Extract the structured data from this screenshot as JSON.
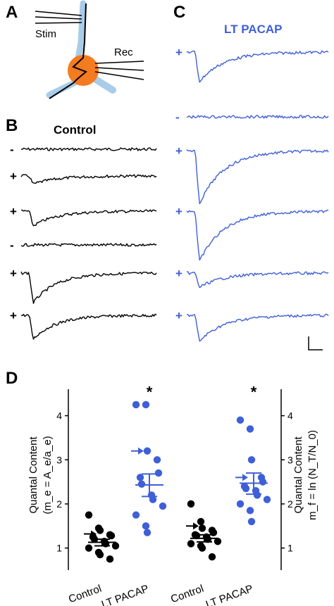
{
  "panels": {
    "a": {
      "letter": "A",
      "stim_label": "Stim",
      "rec_label": "Rec"
    },
    "b": {
      "letter": "B",
      "title": "Control",
      "signs": [
        "-",
        "+",
        "+",
        "-",
        "+",
        "+"
      ]
    },
    "c": {
      "letter": "C",
      "title": "LT PACAP",
      "signs": [
        "+",
        "-",
        "+",
        "+",
        "+",
        "+"
      ]
    },
    "d": {
      "letter": "D"
    }
  },
  "colors": {
    "control": "#000000",
    "pacap": "#3f5fd8",
    "soma": "#f47b20",
    "dendrite": "#a9cde8"
  },
  "chart_data": [
    {
      "type": "scatter",
      "ylabel_line1": "Quantal Content",
      "ylabel_line2": "(m_e = A_e/a_e)",
      "ylim": [
        0.5,
        4.6
      ],
      "yticks": [
        1,
        2,
        3,
        4
      ],
      "categories": [
        "Control",
        "LT PACAP"
      ],
      "series": [
        {
          "category": "Control",
          "values": [
            1.75,
            1.45,
            1.4,
            1.3,
            1.28,
            1.25,
            1.2,
            1.15,
            1.1,
            1.05,
            1.0,
            0.9,
            0.85,
            0.75
          ],
          "mean": 1.13,
          "sem_upper": 1.2,
          "sem_lower": 1.05,
          "arrow_value": 1.32
        },
        {
          "category": "LT PACAP",
          "values": [
            4.25,
            4.25,
            3.2,
            3.0,
            2.7,
            2.6,
            2.45,
            2.2,
            2.1,
            1.95,
            1.75,
            1.5,
            1.35
          ],
          "mean": 2.43,
          "sem_upper": 2.68,
          "sem_lower": 2.17,
          "arrow_value": 3.2
        }
      ],
      "annotation": "*"
    },
    {
      "type": "scatter",
      "ylabel_line1": "Quantal Content",
      "ylabel_line2": "m_f = ln (N_T/N_0)",
      "ylim": [
        0.5,
        4.6
      ],
      "yticks": [
        1,
        2,
        3,
        4
      ],
      "categories": [
        "Control",
        "LT PACAP"
      ],
      "series": [
        {
          "category": "Control",
          "values": [
            2.0,
            1.6,
            1.45,
            1.4,
            1.35,
            1.3,
            1.28,
            1.25,
            1.2,
            1.15,
            1.1,
            1.05,
            1.0,
            0.8
          ],
          "mean": 1.22,
          "sem_upper": 1.3,
          "sem_lower": 1.14,
          "arrow_value": 1.5
        },
        {
          "category": "LT PACAP",
          "values": [
            3.9,
            3.7,
            3.0,
            2.6,
            2.5,
            2.4,
            2.35,
            2.3,
            2.2,
            2.1,
            2.0,
            1.85,
            1.6
          ],
          "mean": 2.47,
          "sem_upper": 2.7,
          "sem_lower": 2.22,
          "arrow_value": 2.6
        }
      ],
      "annotation": "*"
    }
  ]
}
